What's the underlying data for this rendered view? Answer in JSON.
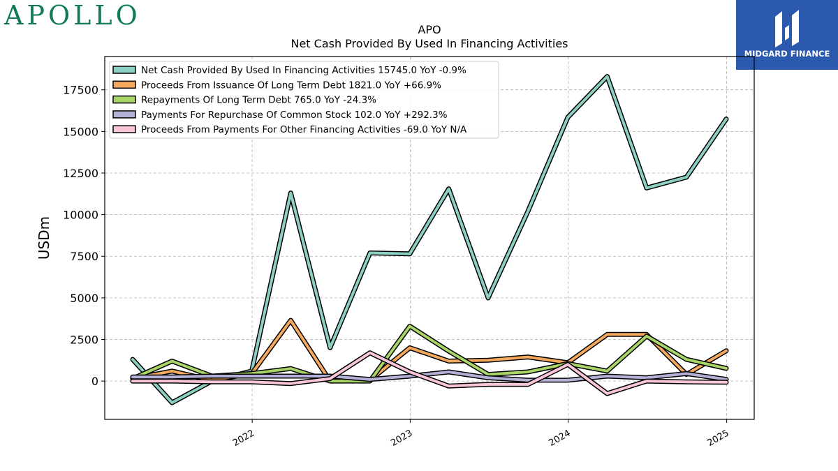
{
  "brand": {
    "left": "APOLLO",
    "right": "MIDGARD FINANCE"
  },
  "chart_data": {
    "type": "line",
    "title": "APO",
    "subtitle": "Net Cash Provided By Used In Financing Activities",
    "ylabel": "USDm",
    "xlabel": "",
    "ylim": [
      -2300,
      19500
    ],
    "yticks": [
      0,
      2500,
      5000,
      7500,
      10000,
      12500,
      15000,
      17500
    ],
    "xticks": [
      "2022",
      "2023",
      "2024",
      "2025"
    ],
    "grid": true,
    "legend_position": "top-left",
    "x": [
      "2021-03-31",
      "2021-06-30",
      "2021-09-30",
      "2021-12-31",
      "2022-03-31",
      "2022-06-30",
      "2022-09-30",
      "2022-12-31",
      "2023-03-31",
      "2023-06-30",
      "2023-09-30",
      "2023-12-31",
      "2024-03-31",
      "2024-06-30",
      "2024-09-30",
      "2024-12-31"
    ],
    "series": [
      {
        "name": "Net Cash Provided By Used In Financing Activities",
        "legend": "Net Cash Provided By Used In Financing Activities  15745.0 YoY -0.9%",
        "color": "#8ecfc3",
        "values": [
          1300,
          -1300,
          0,
          600,
          11300,
          2000,
          7700,
          7650,
          11550,
          5000,
          10200,
          15850,
          18300,
          11600,
          12250,
          15745
        ]
      },
      {
        "name": "Proceeds From Issuance Of Long Term Debt",
        "legend": "Proceeds From Issuance Of Long Term Debt  1821.0 YoY +66.9%",
        "color": "#f4a95f",
        "values": [
          150,
          600,
          50,
          450,
          3650,
          0,
          50,
          2000,
          1200,
          1250,
          1450,
          1100,
          2800,
          2800,
          400,
          1821
        ]
      },
      {
        "name": "Repayments Of Long Term Debt",
        "legend": "Repayments Of Long Term Debt  765.0 YoY -24.3%",
        "color": "#a8d468",
        "values": [
          150,
          1200,
          300,
          450,
          750,
          0,
          0,
          3300,
          1800,
          400,
          550,
          1050,
          600,
          2700,
          1300,
          765
        ]
      },
      {
        "name": "Payments For Repurchase Of Common Stock",
        "legend": "Payments For Repurchase Of Common Stock  102.0 YoY +292.3%",
        "color": "#b3b1d6",
        "values": [
          250,
          250,
          300,
          300,
          300,
          300,
          100,
          300,
          550,
          200,
          50,
          50,
          300,
          200,
          450,
          102
        ]
      },
      {
        "name": "Proceeds From Payments For Other Financing Activities",
        "legend": "Proceeds From Payments For Other Financing Activities  -69.0 YoY N/A",
        "color": "#f8c5d9",
        "values": [
          0,
          0,
          -50,
          -50,
          -150,
          150,
          1700,
          550,
          -300,
          -200,
          -200,
          1000,
          -750,
          0,
          -50,
          -69
        ]
      }
    ]
  }
}
